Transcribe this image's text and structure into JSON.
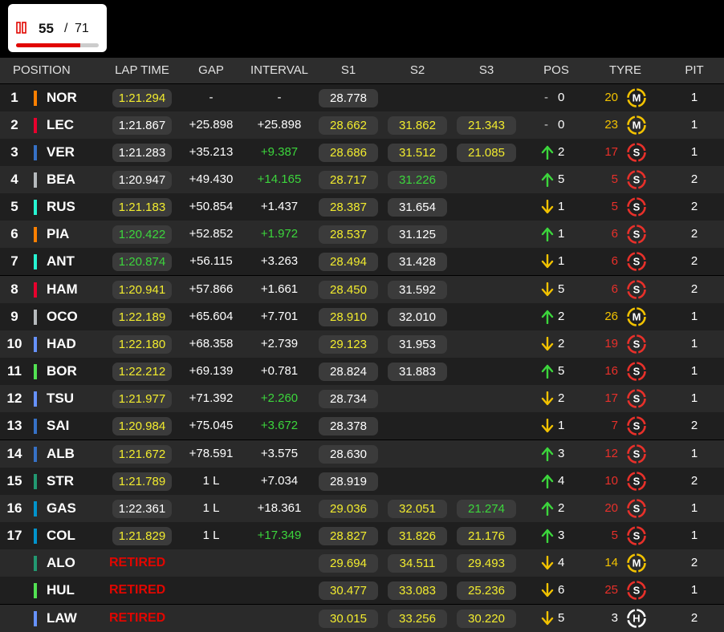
{
  "header": {
    "lap": {
      "current": "55",
      "separator": "/",
      "total": "71"
    }
  },
  "table": {
    "columns": [
      "POSITION",
      "LAP TIME",
      "GAP",
      "INTERVAL",
      "S1",
      "S2",
      "S3",
      "POS",
      "TYRE",
      "PIT"
    ],
    "rows": [
      {
        "position": "1",
        "team_color": "#ff8000",
        "driver": "NOR",
        "lap_time": {
          "text": "1:21.294",
          "color": "yellow"
        },
        "gap": "-",
        "interval": {
          "text": "-",
          "color": "white"
        },
        "s1": {
          "text": "28.778",
          "color": "white"
        },
        "s2": null,
        "s3": null,
        "pos_change": {
          "trend": "none",
          "symbol": "-",
          "value": "0"
        },
        "tyre": {
          "age": "20",
          "compound": "M",
          "color": "#f2c200"
        },
        "pit": "1"
      },
      {
        "position": "2",
        "team_color": "#e8002d",
        "driver": "LEC",
        "lap_time": {
          "text": "1:21.867",
          "color": "white"
        },
        "gap": "+25.898",
        "interval": {
          "text": "+25.898",
          "color": "white"
        },
        "s1": {
          "text": "28.662",
          "color": "yellow"
        },
        "s2": {
          "text": "31.862",
          "color": "yellow"
        },
        "s3": {
          "text": "21.343",
          "color": "yellow"
        },
        "pos_change": {
          "trend": "none",
          "symbol": "-",
          "value": "0"
        },
        "tyre": {
          "age": "23",
          "compound": "M",
          "color": "#f2c200"
        },
        "pit": "1"
      },
      {
        "position": "3",
        "team_color": "#3671c6",
        "driver": "VER",
        "lap_time": {
          "text": "1:21.283",
          "color": "white"
        },
        "gap": "+35.213",
        "interval": {
          "text": "+9.387",
          "color": "green"
        },
        "s1": {
          "text": "28.686",
          "color": "yellow"
        },
        "s2": {
          "text": "31.512",
          "color": "yellow"
        },
        "s3": {
          "text": "21.085",
          "color": "yellow"
        },
        "pos_change": {
          "trend": "up",
          "value": "2"
        },
        "tyre": {
          "age": "17",
          "compound": "S",
          "color": "#e8302a"
        },
        "pit": "1"
      },
      {
        "position": "4",
        "team_color": "#b6babd",
        "driver": "BEA",
        "lap_time": {
          "text": "1:20.947",
          "color": "white"
        },
        "gap": "+49.430",
        "interval": {
          "text": "+14.165",
          "color": "green"
        },
        "s1": {
          "text": "28.717",
          "color": "yellow"
        },
        "s2": {
          "text": "31.226",
          "color": "green"
        },
        "s3": null,
        "pos_change": {
          "trend": "up",
          "value": "5"
        },
        "tyre": {
          "age": "5",
          "compound": "S",
          "color": "#e8302a"
        },
        "pit": "2"
      },
      {
        "position": "5",
        "team_color": "#27f4d2",
        "driver": "RUS",
        "lap_time": {
          "text": "1:21.183",
          "color": "yellow"
        },
        "gap": "+50.854",
        "interval": {
          "text": "+1.437",
          "color": "white"
        },
        "s1": {
          "text": "28.387",
          "color": "yellow"
        },
        "s2": {
          "text": "31.654",
          "color": "white"
        },
        "s3": null,
        "pos_change": {
          "trend": "down",
          "value": "1"
        },
        "tyre": {
          "age": "5",
          "compound": "S",
          "color": "#e8302a"
        },
        "pit": "2"
      },
      {
        "position": "6",
        "team_color": "#ff8000",
        "driver": "PIA",
        "lap_time": {
          "text": "1:20.422",
          "color": "green"
        },
        "gap": "+52.852",
        "interval": {
          "text": "+1.972",
          "color": "green"
        },
        "s1": {
          "text": "28.537",
          "color": "yellow"
        },
        "s2": {
          "text": "31.125",
          "color": "white"
        },
        "s3": null,
        "pos_change": {
          "trend": "up",
          "value": "1"
        },
        "tyre": {
          "age": "6",
          "compound": "S",
          "color": "#e8302a"
        },
        "pit": "2"
      },
      {
        "position": "7",
        "team_color": "#27f4d2",
        "driver": "ANT",
        "lap_time": {
          "text": "1:20.874",
          "color": "green"
        },
        "gap": "+56.115",
        "interval": {
          "text": "+3.263",
          "color": "white"
        },
        "s1": {
          "text": "28.494",
          "color": "yellow"
        },
        "s2": {
          "text": "31.428",
          "color": "white"
        },
        "s3": null,
        "pos_change": {
          "trend": "down",
          "value": "1"
        },
        "tyre": {
          "age": "6",
          "compound": "S",
          "color": "#e8302a"
        },
        "pit": "2"
      },
      {
        "position": "8",
        "team_color": "#e8002d",
        "driver": "HAM",
        "lap_time": {
          "text": "1:20.941",
          "color": "yellow"
        },
        "gap": "+57.866",
        "interval": {
          "text": "+1.661",
          "color": "white"
        },
        "s1": {
          "text": "28.450",
          "color": "yellow"
        },
        "s2": {
          "text": "31.592",
          "color": "white"
        },
        "s3": null,
        "pos_change": {
          "trend": "down",
          "value": "5"
        },
        "tyre": {
          "age": "6",
          "compound": "S",
          "color": "#e8302a"
        },
        "pit": "2"
      },
      {
        "position": "9",
        "team_color": "#b6babd",
        "driver": "OCO",
        "lap_time": {
          "text": "1:22.189",
          "color": "yellow"
        },
        "gap": "+65.604",
        "interval": {
          "text": "+7.701",
          "color": "white"
        },
        "s1": {
          "text": "28.910",
          "color": "yellow"
        },
        "s2": {
          "text": "32.010",
          "color": "white"
        },
        "s3": null,
        "pos_change": {
          "trend": "up",
          "value": "2"
        },
        "tyre": {
          "age": "26",
          "compound": "M",
          "color": "#f2c200"
        },
        "pit": "1"
      },
      {
        "position": "10",
        "team_color": "#6692ff",
        "driver": "HAD",
        "lap_time": {
          "text": "1:22.180",
          "color": "yellow"
        },
        "gap": "+68.358",
        "interval": {
          "text": "+2.739",
          "color": "white"
        },
        "s1": {
          "text": "29.123",
          "color": "yellow"
        },
        "s2": {
          "text": "31.953",
          "color": "white"
        },
        "s3": null,
        "pos_change": {
          "trend": "down",
          "value": "2"
        },
        "tyre": {
          "age": "19",
          "compound": "S",
          "color": "#e8302a"
        },
        "pit": "1"
      },
      {
        "position": "11",
        "team_color": "#52e252",
        "driver": "BOR",
        "lap_time": {
          "text": "1:22.212",
          "color": "yellow"
        },
        "gap": "+69.139",
        "interval": {
          "text": "+0.781",
          "color": "white"
        },
        "s1": {
          "text": "28.824",
          "color": "white"
        },
        "s2": {
          "text": "31.883",
          "color": "white"
        },
        "s3": null,
        "pos_change": {
          "trend": "up",
          "value": "5"
        },
        "tyre": {
          "age": "16",
          "compound": "S",
          "color": "#e8302a"
        },
        "pit": "1"
      },
      {
        "position": "12",
        "team_color": "#6692ff",
        "driver": "TSU",
        "lap_time": {
          "text": "1:21.977",
          "color": "yellow"
        },
        "gap": "+71.392",
        "interval": {
          "text": "+2.260",
          "color": "green"
        },
        "s1": {
          "text": "28.734",
          "color": "white"
        },
        "s2": null,
        "s3": null,
        "pos_change": {
          "trend": "down",
          "value": "2"
        },
        "tyre": {
          "age": "17",
          "compound": "S",
          "color": "#e8302a"
        },
        "pit": "1"
      },
      {
        "position": "13",
        "team_color": "#3671c6",
        "driver": "SAI",
        "lap_time": {
          "text": "1:20.984",
          "color": "yellow"
        },
        "gap": "+75.045",
        "interval": {
          "text": "+3.672",
          "color": "green"
        },
        "s1": {
          "text": "28.378",
          "color": "white"
        },
        "s2": null,
        "s3": null,
        "pos_change": {
          "trend": "down",
          "value": "1"
        },
        "tyre": {
          "age": "7",
          "compound": "S",
          "color": "#e8302a"
        },
        "pit": "2"
      },
      {
        "position": "14",
        "team_color": "#3671c6",
        "driver": "ALB",
        "lap_time": {
          "text": "1:21.672",
          "color": "yellow"
        },
        "gap": "+78.591",
        "interval": {
          "text": "+3.575",
          "color": "white"
        },
        "s1": {
          "text": "28.630",
          "color": "white"
        },
        "s2": null,
        "s3": null,
        "pos_change": {
          "trend": "up",
          "value": "3"
        },
        "tyre": {
          "age": "12",
          "compound": "S",
          "color": "#e8302a"
        },
        "pit": "1"
      },
      {
        "position": "15",
        "team_color": "#229971",
        "driver": "STR",
        "lap_time": {
          "text": "1:21.789",
          "color": "yellow"
        },
        "gap": "1 L",
        "interval": {
          "text": "+7.034",
          "color": "white"
        },
        "s1": {
          "text": "28.919",
          "color": "white"
        },
        "s2": null,
        "s3": null,
        "pos_change": {
          "trend": "up",
          "value": "4"
        },
        "tyre": {
          "age": "10",
          "compound": "S",
          "color": "#e8302a"
        },
        "pit": "2"
      },
      {
        "position": "16",
        "team_color": "#0093cc",
        "driver": "GAS",
        "lap_time": {
          "text": "1:22.361",
          "color": "white"
        },
        "gap": "1 L",
        "interval": {
          "text": "+18.361",
          "color": "white"
        },
        "s1": {
          "text": "29.036",
          "color": "yellow"
        },
        "s2": {
          "text": "32.051",
          "color": "yellow"
        },
        "s3": {
          "text": "21.274",
          "color": "green"
        },
        "pos_change": {
          "trend": "up",
          "value": "2"
        },
        "tyre": {
          "age": "20",
          "compound": "S",
          "color": "#e8302a"
        },
        "pit": "1"
      },
      {
        "position": "17",
        "team_color": "#0093cc",
        "driver": "COL",
        "lap_time": {
          "text": "1:21.829",
          "color": "yellow"
        },
        "gap": "1 L",
        "interval": {
          "text": "+17.349",
          "color": "green"
        },
        "s1": {
          "text": "28.827",
          "color": "yellow"
        },
        "s2": {
          "text": "31.826",
          "color": "yellow"
        },
        "s3": {
          "text": "21.176",
          "color": "yellow"
        },
        "pos_change": {
          "trend": "up",
          "value": "3"
        },
        "tyre": {
          "age": "5",
          "compound": "S",
          "color": "#e8302a"
        },
        "pit": "1"
      },
      {
        "position": null,
        "team_color": "#229971",
        "driver": "ALO",
        "lap_time": {
          "text": "RETIRED",
          "color": "red"
        },
        "gap": null,
        "interval": null,
        "s1": {
          "text": "29.694",
          "color": "yellow"
        },
        "s2": {
          "text": "34.511",
          "color": "yellow"
        },
        "s3": {
          "text": "29.493",
          "color": "yellow"
        },
        "pos_change": {
          "trend": "down",
          "value": "4"
        },
        "tyre": {
          "age": "14",
          "compound": "M",
          "color": "#f2c200"
        },
        "pit": "2"
      },
      {
        "position": null,
        "team_color": "#52e252",
        "driver": "HUL",
        "lap_time": {
          "text": "RETIRED",
          "color": "red"
        },
        "gap": null,
        "interval": null,
        "s1": {
          "text": "30.477",
          "color": "yellow"
        },
        "s2": {
          "text": "33.083",
          "color": "yellow"
        },
        "s3": {
          "text": "25.236",
          "color": "yellow"
        },
        "pos_change": {
          "trend": "down",
          "value": "6"
        },
        "tyre": {
          "age": "25",
          "compound": "S",
          "color": "#e8302a"
        },
        "pit": "1"
      },
      {
        "position": null,
        "team_color": "#6692ff",
        "driver": "LAW",
        "lap_time": {
          "text": "RETIRED",
          "color": "red"
        },
        "gap": null,
        "interval": null,
        "s1": {
          "text": "30.015",
          "color": "yellow"
        },
        "s2": {
          "text": "33.256",
          "color": "yellow"
        },
        "s3": {
          "text": "30.220",
          "color": "yellow"
        },
        "pos_change": {
          "trend": "down",
          "value": "5"
        },
        "tyre": {
          "age": "3",
          "compound": "H",
          "color": "#ffffff"
        },
        "pit": "2"
      }
    ]
  }
}
